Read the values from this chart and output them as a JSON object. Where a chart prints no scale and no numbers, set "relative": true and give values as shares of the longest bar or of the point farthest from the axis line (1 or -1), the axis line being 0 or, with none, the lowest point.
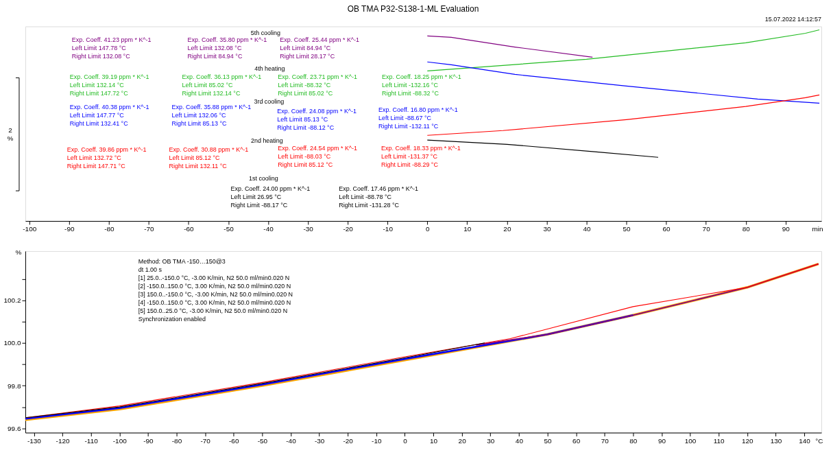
{
  "chart_data": [
    {
      "type": "line",
      "title": "OB TMA P32-S138-1-ML Evaluation",
      "xlabel": "min",
      "ylabel": "2 %",
      "relative": true,
      "marker": "none",
      "line_style": "solid",
      "grid": false,
      "tick_labels": "x",
      "xlim": [
        -101,
        99
      ],
      "xticks": [
        -100,
        -90,
        -80,
        -70,
        -60,
        -50,
        -40,
        -30,
        -20,
        -10,
        0,
        10,
        20,
        30,
        40,
        50,
        60,
        70,
        80,
        90
      ],
      "series": [
        {
          "color": "#800080",
          "x": [
            0,
            6,
            22,
            41.5
          ],
          "values": [
            0.968,
            0.961,
            0.91,
            0.857
          ]
        },
        {
          "color": "#22bb22",
          "x": [
            0,
            19,
            40,
            80,
            95,
            98.5
          ],
          "values": [
            0.785,
            0.814,
            0.846,
            0.932,
            0.982,
            1.0
          ]
        },
        {
          "color": "#0000ff",
          "x": [
            0,
            6,
            22,
            50,
            83,
            98.5
          ],
          "values": [
            0.832,
            0.817,
            0.767,
            0.706,
            0.638,
            0.616
          ]
        },
        {
          "color": "#ff0000",
          "x": [
            0,
            19,
            50,
            80,
            95,
            98.5
          ],
          "values": [
            0.448,
            0.473,
            0.53,
            0.599,
            0.645,
            0.659
          ]
        },
        {
          "color": "#000000",
          "x": [
            0,
            20,
            42,
            58
          ],
          "values": [
            0.423,
            0.401,
            0.362,
            0.333
          ]
        }
      ],
      "annotations": [
        "15.07.2022 14:12:57",
        "5th cooling",
        "Exp. Coeff.  41.23 ppm * K^-1\nLeft Limit  147.78 °C\nRight Limit  132.08 °C",
        "Exp. Coeff.  35.80 ppm * K^-1\nLeft Limit  132.08 °C\nRight Limit  84.94 °C",
        "Exp. Coeff.  25.44 ppm * K^-1\nLeft Limit  84.94 °C\nRight Limit  28.17 °C",
        "4th heating",
        "Exp. Coeff.  39.19 ppm * K^-1\nLeft Limit  132.14 °C\nRight Limit  147.72 °C",
        "Exp. Coeff.  36.13 ppm * K^-1\nLeft Limit  85.02 °C\nRight Limit  132.14 °C",
        "Exp. Coeff.  23.71 ppm * K^-1\nLeft Limit  -88.32 °C\nRight Limit  85.02 °C",
        "Exp. Coeff.  18.25 ppm * K^-1\nLeft Limit  -132.16 °C\nRight Limit  -88.32 °C",
        "3rd cooling",
        "Exp. Coeff.  40.38 ppm * K^-1\nLeft Limit  147.77 °C\nRight Limit  132.41 °C",
        "Exp. Coeff.  35.88 ppm * K^-1\nLeft Limit  132.06 °C\nRight Limit  85.13 °C",
        "Exp. Coeff.  24.08 ppm * K^-1\nLeft Limit  85.13 °C\nRight Limit  -88.12 °C",
        "Exp. Coeff.  16.80 ppm * K^-1\nLeft Limit  -88.67 °C\nRight Limit  -132.11 °C",
        "2nd heating",
        "Exp. Coeff.  39.86 ppm * K^-1\nLeft Limit  132.72 °C\nRight Limit  147.71 °C",
        "Exp. Coeff.  30.88 ppm * K^-1\nLeft Limit  85.12 °C\nRight Limit  132.11 °C",
        "Exp. Coeff.  24.54 ppm * K^-1\nLeft Limit  -88.03 °C\nRight Limit  85.12 °C",
        "Exp. Coeff.  18.33 ppm * K^-1\nLeft Limit  -131.37 °C\nRight Limit  -88.29 °C",
        "1st cooling",
        "Exp. Coeff.  24.00 ppm * K^-1\nLeft Limit  26.95 °C\nRight Limit  -88.17 °C",
        "Exp. Coeff.  17.46 ppm * K^-1\nLeft Limit  -88.78 °C\nRight Limit  -131.28 °C"
      ]
    },
    {
      "type": "line",
      "xlabel": "°C",
      "ylabel": "%",
      "marker": "none",
      "line_style": "solid",
      "grid": false,
      "xlim": [
        -133,
        146
      ],
      "xticks": [
        -130,
        -120,
        -110,
        -100,
        -90,
        -80,
        -70,
        -60,
        -50,
        -40,
        -30,
        -20,
        -10,
        0,
        10,
        20,
        30,
        40,
        50,
        60,
        70,
        80,
        90,
        100,
        110,
        120,
        130,
        140
      ],
      "ylim": [
        99.58,
        100.43
      ],
      "yticks": [
        99.6,
        {
          "value": 99.7,
          "label": null
        },
        99.8,
        {
          "value": 99.9,
          "label": null
        },
        {
          "value": 100.0,
          "label": "100.0"
        },
        {
          "value": 100.1,
          "label": null
        },
        100.2,
        {
          "value": 100.3,
          "label": null
        }
      ],
      "series": [
        {
          "color": "#ffa500",
          "x": [
            -133,
            -100,
            -50,
            0,
            50,
            80,
            120,
            145
          ],
          "values": [
            99.64,
            99.69,
            99.8,
            99.92,
            100.04,
            100.13,
            100.26,
            100.37
          ]
        },
        {
          "color": "#0000ff",
          "x": [
            -133,
            -100,
            -50,
            0,
            50,
            80
          ],
          "values": [
            99.645,
            99.695,
            99.805,
            99.925,
            100.04,
            100.13
          ]
        },
        {
          "color": "#800080",
          "x": [
            25,
            50,
            80,
            120,
            145
          ],
          "values": [
            99.99,
            100.04,
            100.13,
            100.26,
            100.37
          ]
        },
        {
          "color": "#ff0000",
          "x": [
            -133,
            -100,
            -50,
            0,
            37,
            80,
            120,
            145
          ],
          "values": [
            99.65,
            99.705,
            99.815,
            99.935,
            100.02,
            100.17,
            100.26,
            100.37
          ]
        },
        {
          "color": "#000000",
          "x": [
            -133,
            -100,
            -50,
            0,
            28
          ],
          "values": [
            99.65,
            99.7,
            99.81,
            99.93,
            100.0
          ]
        }
      ],
      "annotations": [
        "Method: OB TMA -150…150@3\ndt 1.00 s\n[1] 25.0..-150.0 °C, -3.00 K/min,  N2 50.0 ml/min0.020 N\n[2] -150.0..150.0 °C, 3.00 K/min,  N2 50.0 ml/min0.020 N\n[3] 150.0..-150.0 °C, -3.00 K/min, N2 50.0 ml/min0.020 N\n[4] -150.0..150.0 °C, 3.00 K/min,  N2 50.0 ml/min0.020 N\n[5] 150.0..25.0 °C, -3.00 K/min,  N2 50.0 ml/min0.020 N\nSynchronization enabled"
      ]
    }
  ]
}
